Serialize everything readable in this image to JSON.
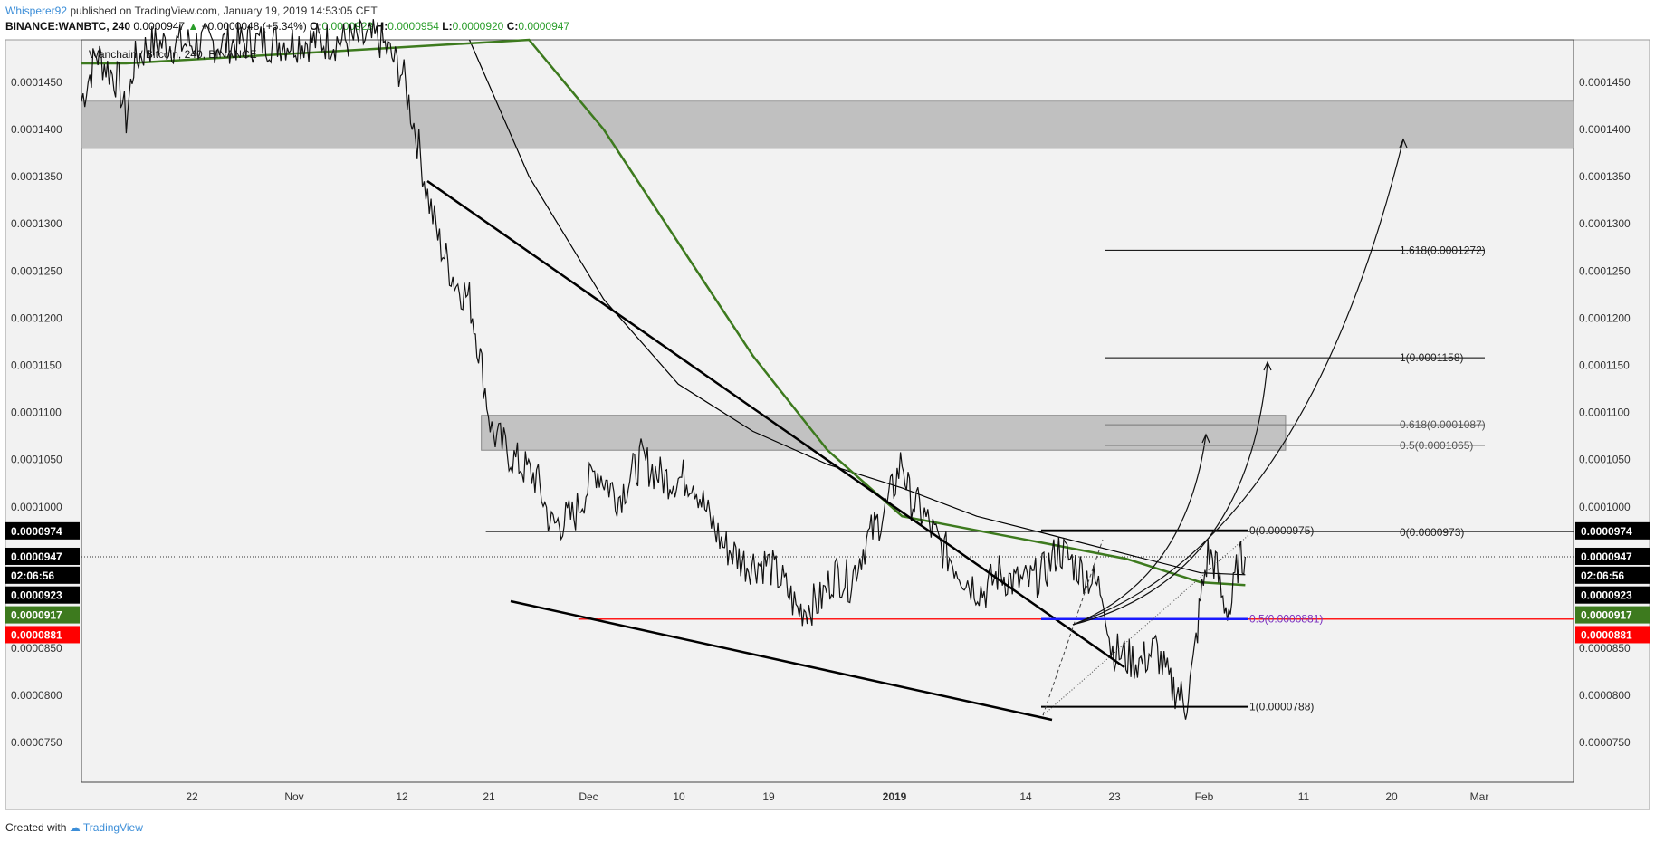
{
  "header": {
    "author": "Whisperer92",
    "published_text": "published on TradingView.com, January 19, 2019 14:53:05 CET",
    "symbol_interval": "BINANCE:WANBTC, 240",
    "last": "0.0000947",
    "change": "+0.0000048 (+5.34%)",
    "open_label": "O:",
    "open": "0.0000923",
    "high_label": "H:",
    "high": "0.0000954",
    "low_label": "L:",
    "low": "0.0000920",
    "close_label": "C:",
    "close": "0.0000947"
  },
  "footer": {
    "created_with": "Created with",
    "brand": "TradingView"
  },
  "colors": {
    "up": "#2a9d2a",
    "red_line": "#ff1a1a",
    "blue_line": "#1a1aff",
    "ma_green": "#3d7a1e",
    "zone": "#bdbdbd"
  },
  "chart_data": {
    "type": "candlestick",
    "title": "Wanchain / Bitcoin, 240, BINANCE",
    "x_ticks": [
      "22",
      "Nov",
      "12",
      "21",
      "Dec",
      "10",
      "19",
      "2019",
      "14",
      "23",
      "Feb",
      "11",
      "20",
      "Mar"
    ],
    "y_ticks": [
      "0.0001450",
      "0.0001400",
      "0.0001350",
      "0.0001300",
      "0.0001250",
      "0.0001200",
      "0.0001150",
      "0.0001100",
      "0.0001050",
      "0.0001000",
      "0.0000850",
      "0.0000800",
      "0.0000750"
    ],
    "ylim": [
      7.08e-05,
      0.0001495
    ],
    "price_tags": [
      {
        "label": "0.0000974",
        "value": 9.74e-05,
        "style": "black"
      },
      {
        "label": "0.0000947",
        "value": 9.47e-05,
        "style": "black"
      },
      {
        "label": "02:06:56",
        "value": 9.27e-05,
        "style": "black"
      },
      {
        "label": "0.0000923",
        "value": 9.06e-05,
        "style": "black"
      },
      {
        "label": "0.0000917",
        "value": 8.85e-05,
        "style": "green"
      },
      {
        "label": "0.0000881",
        "value": 8.64e-05,
        "style": "red"
      }
    ],
    "resistance_zones": [
      {
        "from": 0.000138,
        "to": 0.000143
      },
      {
        "from": 0.000106,
        "to": 0.0001097
      }
    ],
    "fib_extension": [
      {
        "label": "1.618(0.0001272)",
        "value": 0.0001272
      },
      {
        "label": "1(0.0001158)",
        "value": 0.0001158
      },
      {
        "label": "0.618(0.0001087)",
        "value": 0.0001087
      },
      {
        "label": "0.5(0.0001065)",
        "value": 0.0001065
      },
      {
        "label": "0(0.0000973)",
        "value": 9.73e-05
      }
    ],
    "fib_retracement": [
      {
        "label": "0(0.0000975)",
        "value": 9.75e-05
      },
      {
        "label": "0.5(0.0000881)",
        "value": 8.81e-05
      },
      {
        "label": "1(0.0000788)",
        "value": 7.88e-05
      }
    ],
    "support_line": 8.81e-05,
    "resistance_line": 9.74e-05,
    "last_price": 9.47e-05,
    "price_path": [
      [
        0,
        0.000143
      ],
      [
        0.01,
        0.000148
      ],
      [
        0.025,
        0.000145
      ],
      [
        0.03,
        0.000141
      ],
      [
        0.035,
        0.000147
      ],
      [
        0.045,
        0.000149
      ],
      [
        0.2,
        0.0001495
      ],
      [
        0.215,
        0.000146
      ],
      [
        0.225,
        0.000139
      ],
      [
        0.232,
        0.000133
      ],
      [
        0.24,
        0.000128
      ],
      [
        0.25,
        0.000124
      ],
      [
        0.26,
        0.000122
      ],
      [
        0.265,
        0.000118
      ],
      [
        0.275,
        0.000108
      ],
      [
        0.29,
        0.000105
      ],
      [
        0.305,
        0.000103
      ],
      [
        0.315,
        9.8e-05
      ],
      [
        0.33,
        9.9e-05
      ],
      [
        0.345,
        0.000104
      ],
      [
        0.36,
        0.000101
      ],
      [
        0.375,
        0.000105
      ],
      [
        0.39,
        0.000103
      ],
      [
        0.41,
        0.000103
      ],
      [
        0.42,
        9.9e-05
      ],
      [
        0.43,
        9.6e-05
      ],
      [
        0.445,
        9.4e-05
      ],
      [
        0.46,
        9.4e-05
      ],
      [
        0.47,
        9.2e-05
      ],
      [
        0.48,
        8.9e-05
      ],
      [
        0.495,
        9e-05
      ],
      [
        0.505,
        9.3e-05
      ],
      [
        0.515,
        9.2e-05
      ],
      [
        0.525,
        9.6e-05
      ],
      [
        0.54,
        0.0001
      ],
      [
        0.55,
        0.000105
      ],
      [
        0.555,
        0.000101
      ],
      [
        0.565,
        9.9e-05
      ],
      [
        0.575,
        9.6e-05
      ],
      [
        0.585,
        9.4e-05
      ],
      [
        0.595,
        9.2e-05
      ],
      [
        0.605,
        9.1e-05
      ],
      [
        0.615,
        9.3e-05
      ],
      [
        0.625,
        9.2e-05
      ],
      [
        0.635,
        9.2e-05
      ],
      [
        0.645,
        9.3e-05
      ],
      [
        0.655,
        9.55e-05
      ],
      [
        0.665,
        9.4e-05
      ],
      [
        0.675,
        9.25e-05
      ],
      [
        0.685,
        9.1e-05
      ],
      [
        0.69,
        8.5e-05
      ],
      [
        0.7,
        8.4e-05
      ],
      [
        0.71,
        8.35e-05
      ],
      [
        0.72,
        8.5e-05
      ],
      [
        0.73,
        8.1e-05
      ],
      [
        0.735,
        8.05e-05
      ],
      [
        0.74,
        7.9e-05
      ],
      [
        0.745,
        8.3e-05
      ],
      [
        0.75,
        9e-05
      ],
      [
        0.755,
        9.5e-05
      ],
      [
        0.76,
        9.4e-05
      ],
      [
        0.765,
        9e-05
      ],
      [
        0.77,
        8.9e-05
      ],
      [
        0.775,
        9.4e-05
      ],
      [
        0.78,
        9.47e-05
      ]
    ],
    "moving_averages": [
      {
        "color": "#000000",
        "points": [
          [
            0.26,
            0.0001495
          ],
          [
            0.3,
            0.000135
          ],
          [
            0.35,
            0.000122
          ],
          [
            0.4,
            0.000113
          ],
          [
            0.45,
            0.000108
          ],
          [
            0.5,
            0.0001045
          ],
          [
            0.55,
            0.000102
          ],
          [
            0.6,
            9.9e-05
          ],
          [
            0.65,
            9.7e-05
          ],
          [
            0.7,
            9.5e-05
          ],
          [
            0.75,
            9.3e-05
          ],
          [
            0.78,
            9.28e-05
          ]
        ]
      },
      {
        "color": "#3d7a1e",
        "points": [
          [
            0.0,
            0.000147
          ],
          [
            0.03,
            0.000147
          ],
          [
            0.3,
            0.0001495
          ],
          [
            0.35,
            0.00014
          ],
          [
            0.4,
            0.000128
          ],
          [
            0.45,
            0.000116
          ],
          [
            0.5,
            0.000106
          ],
          [
            0.55,
            9.9e-05
          ],
          [
            0.6,
            9.75e-05
          ],
          [
            0.65,
            9.6e-05
          ],
          [
            0.7,
            9.45e-05
          ],
          [
            0.75,
            9.2e-05
          ],
          [
            0.78,
            9.17e-05
          ]
        ]
      }
    ]
  }
}
